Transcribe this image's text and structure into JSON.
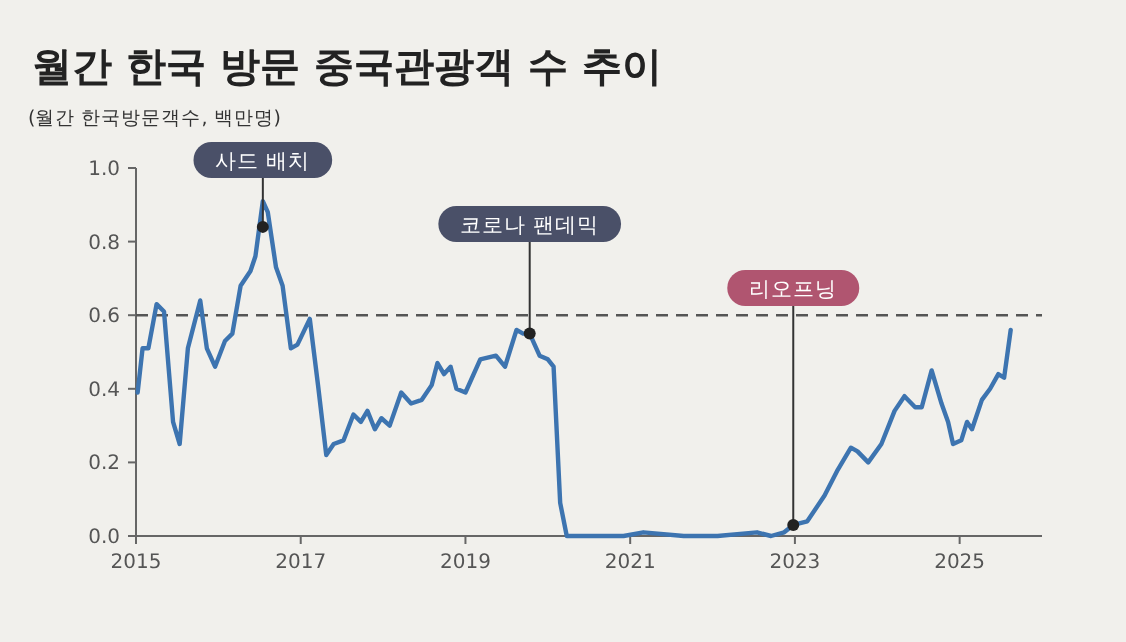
{
  "chart_data": {
    "type": "line",
    "title": "월간 한국 방문 중국관광객 수 추이",
    "ylabel": "(월간 한국방문객수, 백만명)",
    "series": [
      {
        "color": "#3d74b0",
        "x": [
          2015.02,
          2015.08,
          2015.15,
          2015.25,
          2015.34,
          2015.45,
          2015.53,
          2015.63,
          2015.78,
          2015.86,
          2015.96,
          2016.08,
          2016.17,
          2016.27,
          2016.39,
          2016.45,
          2016.54,
          2016.6,
          2016.7,
          2016.78,
          2016.88,
          2016.96,
          2017.11,
          2017.21,
          2017.31,
          2017.4,
          2017.52,
          2017.64,
          2017.73,
          2017.81,
          2017.9,
          2017.98,
          2018.08,
          2018.22,
          2018.34,
          2018.47,
          2018.59,
          2018.66,
          2018.74,
          2018.82,
          2018.89,
          2019.0,
          2019.18,
          2019.37,
          2019.48,
          2019.62,
          2019.7,
          2019.78,
          2019.9,
          2020.0,
          2020.07,
          2020.15,
          2020.23,
          2020.5,
          2020.92,
          2021.16,
          2021.65,
          2022.06,
          2022.54,
          2022.71,
          2022.87,
          2022.98,
          2023.15,
          2023.36,
          2023.52,
          2023.68,
          2023.76,
          2023.89,
          2024.05,
          2024.21,
          2024.33,
          2024.46,
          2024.54,
          2024.66,
          2024.78,
          2024.86,
          2024.92,
          2025.02,
          2025.09,
          2025.15,
          2025.27,
          2025.37,
          2025.47,
          2025.54,
          2025.62
        ],
        "values": [
          0.39,
          0.51,
          0.51,
          0.63,
          0.61,
          0.31,
          0.25,
          0.51,
          0.64,
          0.51,
          0.46,
          0.53,
          0.55,
          0.68,
          0.72,
          0.76,
          0.91,
          0.88,
          0.73,
          0.68,
          0.51,
          0.52,
          0.59,
          0.41,
          0.22,
          0.25,
          0.26,
          0.33,
          0.31,
          0.34,
          0.29,
          0.32,
          0.3,
          0.39,
          0.36,
          0.37,
          0.41,
          0.47,
          0.44,
          0.46,
          0.4,
          0.39,
          0.48,
          0.49,
          0.46,
          0.56,
          0.55,
          0.55,
          0.49,
          0.48,
          0.46,
          0.09,
          0.0,
          0.0,
          0.0,
          0.01,
          0.0,
          0.0,
          0.01,
          0.0,
          0.01,
          0.03,
          0.04,
          0.11,
          0.18,
          0.24,
          0.23,
          0.2,
          0.25,
          0.34,
          0.38,
          0.35,
          0.35,
          0.45,
          0.36,
          0.31,
          0.25,
          0.26,
          0.31,
          0.29,
          0.37,
          0.4,
          0.44,
          0.43,
          0.56
        ]
      }
    ],
    "xlim": [
      2015,
      2026
    ],
    "xticks": [
      2015,
      2017,
      2019,
      2021,
      2023,
      2025
    ],
    "ylim": [
      0,
      1
    ],
    "yticks": [
      {
        "value": 0,
        "label": "0.0"
      },
      0.2,
      0.4,
      0.6,
      0.8,
      {
        "value": 1,
        "label": "1.0"
      }
    ],
    "ref_lines": [
      {
        "axis": "y",
        "value": 0.6,
        "line_style": "dashed",
        "color": "#555555"
      }
    ],
    "annotations": [
      {
        "text": "사드 배치",
        "x": 2016.54,
        "y": 0.84
      },
      {
        "text": "코로나 팬데믹",
        "x": 2019.78,
        "y": 0.55
      },
      {
        "text": "리오프닝",
        "x": 2022.98,
        "y": 0.03
      }
    ],
    "grid": false,
    "marker": "none",
    "line_style": "solid"
  }
}
